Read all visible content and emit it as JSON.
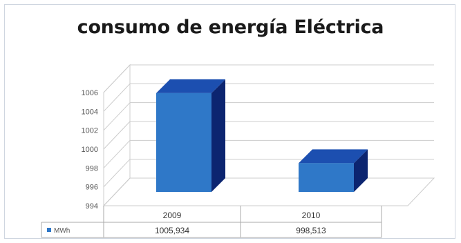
{
  "chart_data": {
    "type": "bar",
    "title": "consumo de energía Eléctrica",
    "categories": [
      "2009",
      "2010"
    ],
    "series": [
      {
        "name": "MWh",
        "values": [
          1005.934,
          998.513
        ],
        "labels": [
          "1005,934",
          "998,513"
        ]
      }
    ],
    "y_ticks": [
      "994",
      "996",
      "998",
      "1000",
      "1002",
      "1004",
      "1006"
    ],
    "ylim": [
      994,
      1006
    ],
    "grid": true,
    "legend": "data-table",
    "colors": {
      "front": "#2f78c8",
      "top": "#1c4fb0",
      "side": "#0c2570"
    }
  }
}
